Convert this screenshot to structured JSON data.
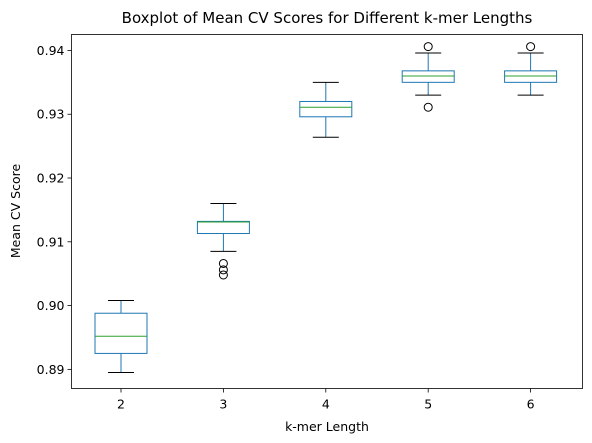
{
  "chart_data": {
    "type": "box",
    "title": "Boxplot of Mean CV Scores for Different k-mer Lengths",
    "xlabel": "k-mer Length",
    "ylabel": "Mean CV Score",
    "ylim": [
      0.887,
      0.9425
    ],
    "yticks": [
      "0.89",
      "0.90",
      "0.91",
      "0.92",
      "0.93",
      "0.94"
    ],
    "grid": false,
    "colors": {
      "box": "#1f77b4",
      "median": "#2ca02c",
      "whisker_cap": "#000000",
      "flier": "#000000"
    },
    "categories": [
      "2",
      "3",
      "4",
      "5",
      "6"
    ],
    "boxes": [
      {
        "label": "2",
        "whisker_low": 0.8895,
        "q1": 0.8925,
        "median": 0.8952,
        "q3": 0.8988,
        "whisker_high": 0.9008,
        "fliers": []
      },
      {
        "label": "3",
        "whisker_low": 0.9085,
        "q1": 0.9113,
        "median": 0.9131,
        "q3": 0.9132,
        "whisker_high": 0.916,
        "fliers": [
          0.9048,
          0.9056,
          0.9066
        ]
      },
      {
        "label": "4",
        "whisker_low": 0.9264,
        "q1": 0.9296,
        "median": 0.9311,
        "q3": 0.932,
        "whisker_high": 0.935,
        "fliers": []
      },
      {
        "label": "5",
        "whisker_low": 0.933,
        "q1": 0.935,
        "median": 0.936,
        "q3": 0.9368,
        "whisker_high": 0.9396,
        "fliers": [
          0.9311,
          0.9406
        ]
      },
      {
        "label": "6",
        "whisker_low": 0.933,
        "q1": 0.935,
        "median": 0.936,
        "q3": 0.9368,
        "whisker_high": 0.9396,
        "fliers": [
          0.9406
        ]
      }
    ]
  }
}
